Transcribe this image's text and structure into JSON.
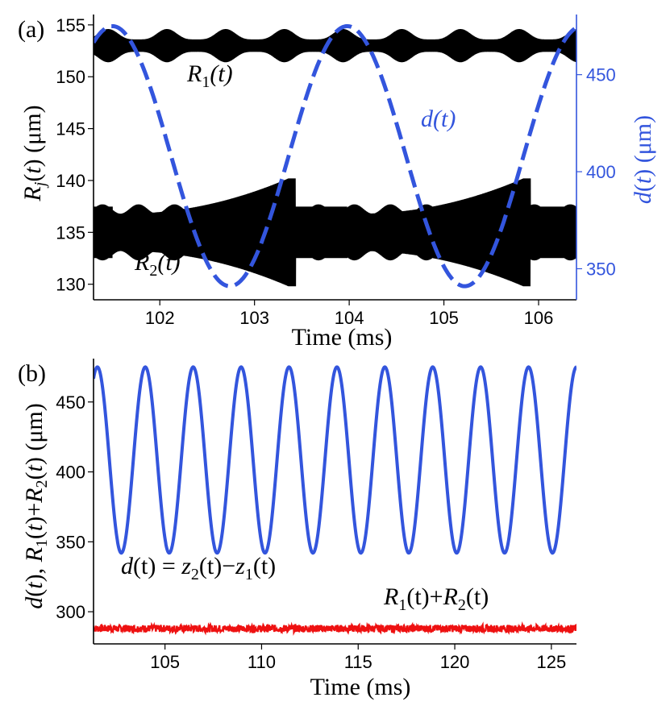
{
  "chart_data": [
    {
      "panel_label": "(a)",
      "type": "line",
      "xlabel": "Time  (ms)",
      "ylabel": "R_j(t) (μm)",
      "ylabel_right": "d(t) (μm)",
      "xlim": [
        101.3,
        106.4
      ],
      "ylim": [
        128.5,
        156
      ],
      "ylim_right": [
        334,
        481
      ],
      "x_ticks": [
        102,
        103,
        104,
        105,
        106
      ],
      "y_ticks": [
        130,
        135,
        140,
        145,
        150,
        155
      ],
      "y_ticks_right": [
        350,
        400,
        450
      ],
      "series": [
        {
          "name": "R_1(t)",
          "label": "R1(t)",
          "color": "#000000",
          "style": "oscillation-band",
          "center": 153,
          "amplitude_min": 0.6,
          "amplitude_max": 1.6
        },
        {
          "name": "R_2(t)",
          "label": "R2(t)",
          "color": "#000000",
          "style": "oscillation-band",
          "center": 135,
          "amplitude_min": 1.8,
          "amplitude_max": 5.2
        },
        {
          "name": "d(t)",
          "label": "d(t)",
          "color": "#3355dd",
          "style": "dashed",
          "axis": "right",
          "min": 341,
          "max": 475,
          "period_ms": 2.48,
          "first_peak_ms": 101.5
        }
      ],
      "annotations": {
        "r1": {
          "main": "R",
          "sub": "1",
          "tail": "(t)"
        },
        "r2": {
          "main": "R",
          "sub": "2",
          "tail": "(t)"
        },
        "d": "d(t)"
      }
    },
    {
      "panel_label": "(b)",
      "type": "line",
      "xlabel": "Time  (ms)",
      "ylabel": "d(t), R_1(t)+R_2(t) (μm)",
      "xlim": [
        101.3,
        126.3
      ],
      "ylim": [
        277,
        481
      ],
      "x_ticks": [
        105,
        110,
        115,
        120,
        125
      ],
      "y_ticks": [
        300,
        350,
        400,
        450
      ],
      "series": [
        {
          "name": "d(t) = z_2(t)-z_1(t)",
          "color": "#3355dd",
          "min": 342,
          "max": 475,
          "period_ms": 2.48,
          "first_peak_ms": 101.5
        },
        {
          "name": "R_1(t)+R_2(t)",
          "color": "#ee1111",
          "center": 288,
          "noise": 2.6
        }
      ],
      "annotations": {
        "d": {
          "a": "d",
          "b": "(t) = ",
          "c": "z",
          "c_sub": "2",
          "d": "(t)−",
          "e": "z",
          "e_sub": "1",
          "f": "(t)"
        },
        "sum": {
          "a": "R",
          "a_sub": "1",
          "b": "(t)+",
          "c": "R",
          "c_sub": "2",
          "d": "(t)"
        }
      }
    }
  ]
}
